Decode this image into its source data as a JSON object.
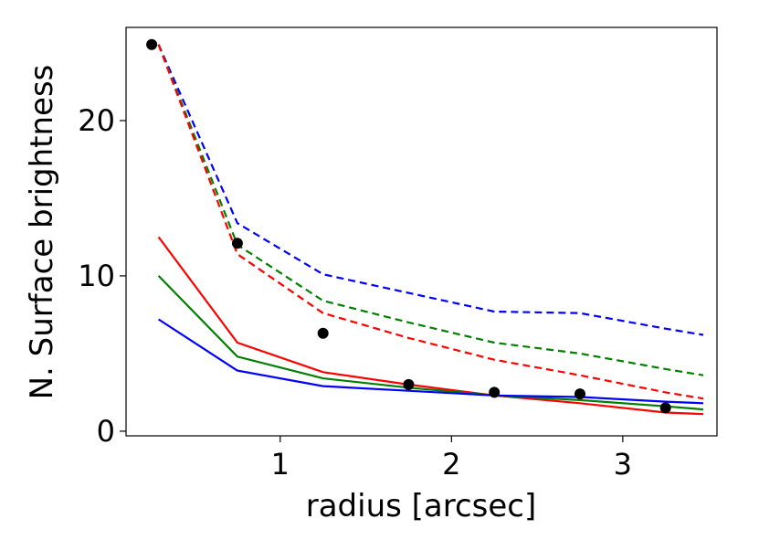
{
  "chart_data": {
    "type": "line",
    "xlabel": "radius [arcsec]",
    "ylabel": "N. Surface brightness",
    "xlim": [
      0.1,
      3.55
    ],
    "ylim": [
      -0.3,
      26.0
    ],
    "xticks": [
      1,
      2,
      3
    ],
    "xtick_labels": [
      "1",
      "2",
      "3"
    ],
    "yticks": [
      0,
      10,
      20
    ],
    "ytick_labels": [
      "0",
      "10",
      "20"
    ],
    "grid": false,
    "legend": "none",
    "points": {
      "color": "#000000",
      "x": [
        0.25,
        0.75,
        1.25,
        1.75,
        2.25,
        2.75,
        3.25
      ],
      "y": [
        24.9,
        12.1,
        6.3,
        3.0,
        2.5,
        2.4,
        1.5
      ]
    },
    "series": [
      {
        "color": "#ff0000",
        "style": "solid",
        "x": [
          0.29,
          0.75,
          1.25,
          1.75,
          2.25,
          2.75,
          3.25,
          3.47
        ],
        "y": [
          12.5,
          5.7,
          3.8,
          3.0,
          2.3,
          1.8,
          1.2,
          1.1
        ]
      },
      {
        "color": "#008000",
        "style": "solid",
        "x": [
          0.29,
          0.75,
          1.25,
          1.75,
          2.25,
          2.75,
          3.25,
          3.47
        ],
        "y": [
          10.0,
          4.8,
          3.4,
          2.8,
          2.3,
          2.0,
          1.6,
          1.4
        ]
      },
      {
        "color": "#0000ff",
        "style": "solid",
        "x": [
          0.29,
          0.75,
          1.25,
          1.75,
          2.25,
          2.75,
          3.25,
          3.47
        ],
        "y": [
          7.2,
          3.9,
          2.9,
          2.6,
          2.3,
          2.2,
          1.9,
          1.8
        ]
      },
      {
        "color": "#0000ff",
        "style": "dashed",
        "x": [
          0.29,
          0.75,
          1.25,
          1.75,
          2.25,
          2.75,
          3.25,
          3.47
        ],
        "y": [
          24.9,
          13.4,
          10.1,
          8.9,
          7.7,
          7.6,
          6.6,
          6.2
        ]
      },
      {
        "color": "#008000",
        "style": "dashed",
        "x": [
          0.29,
          0.75,
          1.25,
          1.75,
          2.25,
          2.75,
          3.25,
          3.47
        ],
        "y": [
          24.9,
          12.0,
          8.4,
          7.0,
          5.7,
          5.0,
          4.0,
          3.6
        ]
      },
      {
        "color": "#ff0000",
        "style": "dashed",
        "x": [
          0.29,
          0.75,
          1.25,
          1.75,
          2.25,
          2.75,
          3.25,
          3.47
        ],
        "y": [
          24.9,
          11.4,
          7.6,
          6.0,
          4.6,
          3.6,
          2.5,
          2.1
        ]
      }
    ]
  }
}
